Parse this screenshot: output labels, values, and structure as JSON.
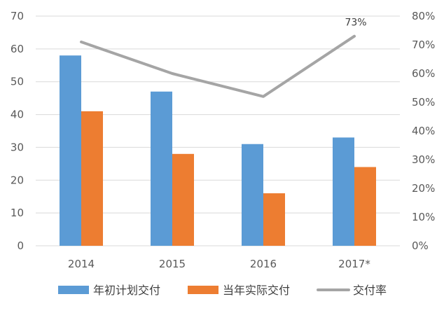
{
  "chart_data": {
    "type": "bar",
    "categories": [
      "2014",
      "2015",
      "2016",
      "2017*"
    ],
    "series": [
      {
        "name": "年初计划交付",
        "type": "bar",
        "axis": "left",
        "color": "#5B9BD5",
        "values": [
          58,
          47,
          31,
          33
        ]
      },
      {
        "name": "当年实际交付",
        "type": "bar",
        "axis": "left",
        "color": "#ED7D31",
        "values": [
          41,
          28,
          16,
          24
        ]
      },
      {
        "name": "交付率",
        "type": "line",
        "axis": "right",
        "color": "#A5A5A5",
        "values": [
          0.71,
          0.6,
          0.52,
          0.73
        ]
      }
    ],
    "y_left": {
      "min": 0,
      "max": 70,
      "step": 10,
      "tick_labels": [
        "0",
        "10",
        "20",
        "30",
        "40",
        "50",
        "60",
        "70"
      ]
    },
    "y_right": {
      "min": 0,
      "max": 0.8,
      "step": 0.1,
      "tick_labels": [
        "0%",
        "10%",
        "20%",
        "30%",
        "40%",
        "50%",
        "60%",
        "70%",
        "80%"
      ]
    },
    "annotations": [
      {
        "series": "交付率",
        "category": "2017*",
        "text": "73%"
      }
    ],
    "grid": true,
    "legend_position": "bottom",
    "title": ""
  }
}
